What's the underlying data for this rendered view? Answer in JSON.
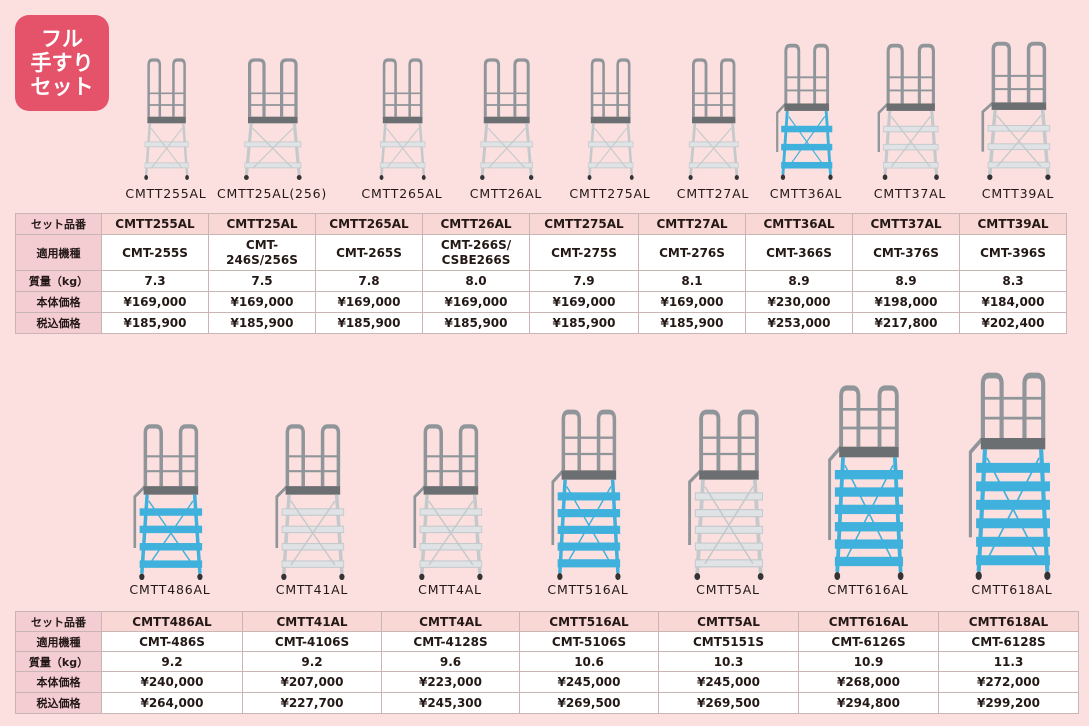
{
  "badge": {
    "lines": [
      "フル",
      "手すり",
      "セット"
    ]
  },
  "labels": [
    "セット品番",
    "適用機種",
    "質量（kg）",
    "本体価格",
    "税込価格"
  ],
  "top_models": [
    {
      "caption": "CMTT255AL",
      "set": "CMTT255AL",
      "machine": "CMT-255S",
      "mass": "7.3",
      "price": "¥169,000",
      "tax": "¥185,900",
      "steps": 2,
      "blue": false
    },
    {
      "caption": "CMTT25AL(256)",
      "set": "CMTT25AL",
      "machine": "CMT-\n246S/256S",
      "mass": "7.5",
      "price": "¥169,000",
      "tax": "¥185,900",
      "steps": 2,
      "blue": false
    },
    {
      "caption": "CMTT265AL",
      "set": "CMTT265AL",
      "machine": "CMT-265S",
      "mass": "7.8",
      "price": "¥169,000",
      "tax": "¥185,900",
      "steps": 2,
      "blue": false
    },
    {
      "caption": "CMTT26AL",
      "set": "CMTT26AL",
      "machine": "CMT-266S/\nCSBE266S",
      "mass": "8.0",
      "price": "¥169,000",
      "tax": "¥185,900",
      "steps": 2,
      "blue": false
    },
    {
      "caption": "CMTT275AL",
      "set": "CMTT275AL",
      "machine": "CMT-275S",
      "mass": "7.9",
      "price": "¥169,000",
      "tax": "¥185,900",
      "steps": 2,
      "blue": false
    },
    {
      "caption": "CMTT27AL",
      "set": "CMTT27AL",
      "machine": "CMT-276S",
      "mass": "8.1",
      "price": "¥169,000",
      "tax": "¥185,900",
      "steps": 2,
      "blue": false
    },
    {
      "caption": "CMTT36AL",
      "set": "CMTT36AL",
      "machine": "CMT-366S",
      "mass": "8.9",
      "price": "¥230,000",
      "tax": "¥253,000",
      "steps": 3,
      "blue": true
    },
    {
      "caption": "CMTT37AL",
      "set": "CMTT37AL",
      "machine": "CMT-376S",
      "mass": "8.9",
      "price": "¥198,000",
      "tax": "¥217,800",
      "steps": 3,
      "blue": false
    },
    {
      "caption": "CMTT39AL",
      "set": "CMTT39AL",
      "machine": "CMT-396S",
      "mass": "8.3",
      "price": "¥184,000",
      "tax": "¥202,400",
      "steps": 3,
      "blue": false
    }
  ],
  "bottom_models": [
    {
      "caption": "CMTT486AL",
      "set": "CMTT486AL",
      "machine": "CMT-486S",
      "mass": "9.2",
      "price": "¥240,000",
      "tax": "¥264,000",
      "steps": 4,
      "blue": true
    },
    {
      "caption": "CMTT41AL",
      "set": "CMTT41AL",
      "machine": "CMT-4106S",
      "mass": "9.2",
      "price": "¥207,000",
      "tax": "¥227,700",
      "steps": 4,
      "blue": false
    },
    {
      "caption": "CMTT4AL",
      "set": "CMTT4AL",
      "machine": "CMT-4128S",
      "mass": "9.6",
      "price": "¥223,000",
      "tax": "¥245,300",
      "steps": 4,
      "blue": false
    },
    {
      "caption": "CMTT516AL",
      "set": "CMTT516AL",
      "machine": "CMT-5106S",
      "mass": "10.6",
      "price": "¥245,000",
      "tax": "¥269,500",
      "steps": 5,
      "blue": true
    },
    {
      "caption": "CMTT5AL",
      "set": "CMTT5AL",
      "machine": "CMT5151S",
      "mass": "10.3",
      "price": "¥245,000",
      "tax": "¥269,500",
      "steps": 5,
      "blue": false
    },
    {
      "caption": "CMTT616AL",
      "set": "CMTT616AL",
      "machine": "CMT-6126S",
      "mass": "10.9",
      "price": "¥268,000",
      "tax": "¥294,800",
      "steps": 6,
      "blue": true
    },
    {
      "caption": "CMTT618AL",
      "set": "CMTT618AL",
      "machine": "CMT-6128S",
      "mass": "11.3",
      "price": "¥272,000",
      "tax": "¥299,200",
      "steps": 6,
      "blue": true
    }
  ],
  "colors": {
    "background": "#fbe0df",
    "badge": "#e5536a",
    "label_cell": "#f3cdd1",
    "blue_steps": "#3fb1dc",
    "aluminum": "#c4c9cc"
  }
}
